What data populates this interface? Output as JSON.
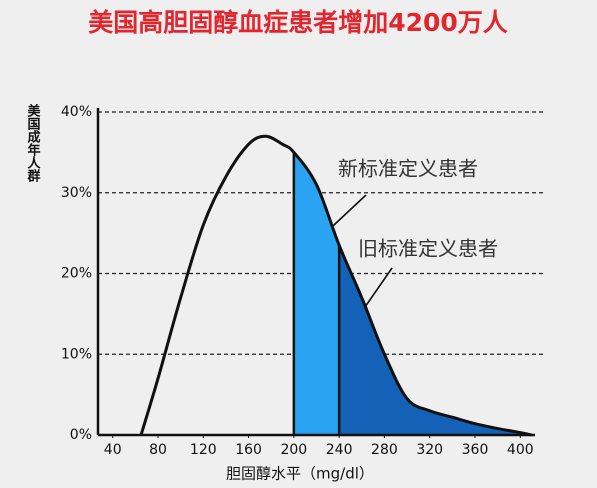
{
  "chart_data": {
    "type": "area-curve",
    "title": "美国高胆固醇血症患者增加4200万人",
    "y_label": "美国成年人群",
    "x_label": "胆固醇水平（mg/dl）",
    "annotations": [
      "新标准定义患者",
      "旧标准定义患者"
    ],
    "x": [
      65,
      80,
      100,
      120,
      140,
      160,
      175,
      190,
      200,
      220,
      240,
      260,
      280,
      300,
      320,
      340,
      360,
      380,
      400,
      410
    ],
    "values": [
      0,
      7,
      17,
      26,
      32,
      36,
      37,
      36,
      35,
      31,
      23.5,
      17,
      10,
      4.5,
      3,
      2.2,
      1.4,
      0.8,
      0.3,
      0
    ],
    "color": "#111111",
    "regions": [
      {
        "from": 200,
        "to": 240,
        "color": "#2aa3f2"
      },
      {
        "from": 240,
        "to": 410,
        "color": "#1461b8"
      }
    ],
    "xlim": [
      27,
      413
    ],
    "xticks": [
      40,
      80,
      120,
      160,
      200,
      240,
      280,
      320,
      360,
      400
    ],
    "ylim": [
      0,
      40
    ],
    "yticks": [
      {
        "value": 0,
        "label": "0%"
      },
      {
        "value": 10,
        "label": "10%"
      },
      {
        "value": 20,
        "label": "20%"
      },
      {
        "value": 30,
        "label": "30%"
      },
      {
        "value": 40,
        "label": "40%"
      }
    ],
    "grid": true
  }
}
